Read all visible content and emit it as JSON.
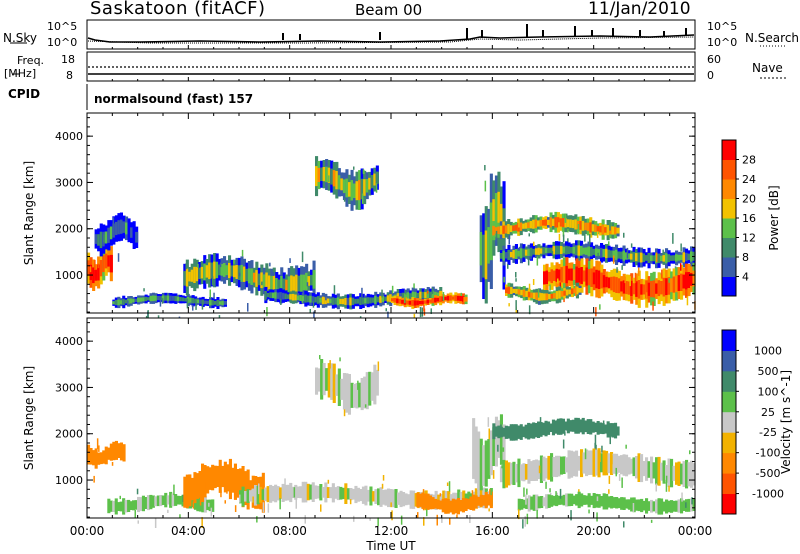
{
  "header": {
    "station": "Saskatoon (fitACF)",
    "beam": "Beam 00",
    "date": "11/Jan/2010"
  },
  "noise_panel": {
    "left_label": "N.Sky",
    "left_ticks": [
      "10^5",
      "10^0"
    ],
    "right_label": "N.Search",
    "right_ticks": [
      "10^5",
      "10^0"
    ]
  },
  "freq_panel": {
    "left_label_1": "Freq.",
    "left_label_2": "[MHz]",
    "left_ticks": [
      "18",
      "8"
    ],
    "right_label": "Nave",
    "right_ticks": [
      "60",
      "0"
    ]
  },
  "cpid_panel": {
    "label": "CPID",
    "text": "normalsound (fast) 157"
  },
  "colors": {
    "power_scale": [
      "#0000ff",
      "#3a5ea8",
      "#408a6a",
      "#5cc04a",
      "#f2c200",
      "#ff8800",
      "#ff5400",
      "#ff0000"
    ],
    "velocity_scale": [
      "#ff0000",
      "#ff5400",
      "#ff8800",
      "#f2b200",
      "#c8c8c8",
      "#5cc04a",
      "#408a6a",
      "#3a5ea8",
      "#0000ff"
    ]
  },
  "chart_data": [
    {
      "type": "heatmap",
      "title": "",
      "ylabel": "Slant Range [km]",
      "xlabel": "",
      "xlim": [
        "00:00",
        "24:00"
      ],
      "ylim": [
        180,
        4500
      ],
      "y_ticks": [
        "1000",
        "2000",
        "3000",
        "4000"
      ],
      "colorbar": {
        "label": "Power [dB]",
        "ticks": [
          "4",
          "8",
          "12",
          "16",
          "20",
          "24",
          "28"
        ],
        "range": [
          0,
          30
        ]
      },
      "regions": [
        {
          "t": [
            0.0,
            1.0
          ],
          "r": [
            700,
            1600
          ],
          "v": 26
        },
        {
          "t": [
            0.3,
            2.0
          ],
          "r": [
            1500,
            2300
          ],
          "v": 8
        },
        {
          "t": [
            1.0,
            5.5
          ],
          "r": [
            300,
            600
          ],
          "v": 10
        },
        {
          "t": [
            3.8,
            9.0
          ],
          "r": [
            500,
            1400
          ],
          "v": 14
        },
        {
          "t": [
            9.0,
            11.5
          ],
          "r": [
            2500,
            3500
          ],
          "v": 15
        },
        {
          "t": [
            7.0,
            14.0
          ],
          "r": [
            300,
            700
          ],
          "v": 12
        },
        {
          "t": [
            12.0,
            15.0
          ],
          "r": [
            300,
            600
          ],
          "v": 27
        },
        {
          "t": [
            15.5,
            16.5
          ],
          "r": [
            500,
            3300
          ],
          "v": 14
        },
        {
          "t": [
            16.0,
            21.0
          ],
          "r": [
            1800,
            2300
          ],
          "v": 20
        },
        {
          "t": [
            16.3,
            24.0
          ],
          "r": [
            1200,
            1700
          ],
          "v": 12
        },
        {
          "t": [
            18.0,
            24.0
          ],
          "r": [
            400,
            1300
          ],
          "v": 27
        },
        {
          "t": [
            16.5,
            19.5
          ],
          "r": [
            400,
            800
          ],
          "v": 20
        }
      ]
    },
    {
      "type": "heatmap",
      "title": "",
      "ylabel": "Slant Range [km]",
      "xlabel": "Time UT",
      "xlim": [
        "00:00",
        "24:00"
      ],
      "ylim": [
        180,
        4500
      ],
      "x_ticks": [
        "00:00",
        "04:00",
        "08:00",
        "12:00",
        "16:00",
        "20:00",
        "00:00"
      ],
      "y_ticks": [
        "1000",
        "2000",
        "3000",
        "4000"
      ],
      "colorbar": {
        "label": "Velocity [m s^-1]",
        "ticks": [
          "1000",
          "500",
          "100",
          "25",
          "-25",
          "-100",
          "-500",
          "-1000"
        ]
      },
      "regions": [
        {
          "t": [
            0.0,
            1.5
          ],
          "r": [
            1300,
            1800
          ],
          "v": -300
        },
        {
          "t": [
            0.8,
            5.0
          ],
          "r": [
            300,
            700
          ],
          "v": 50
        },
        {
          "t": [
            3.8,
            7.0
          ],
          "r": [
            400,
            1400
          ],
          "v": -300
        },
        {
          "t": [
            6.0,
            16.0
          ],
          "r": [
            400,
            900
          ],
          "v": 0
        },
        {
          "t": [
            9.0,
            11.5
          ],
          "r": [
            2500,
            3500
          ],
          "v": 0
        },
        {
          "t": [
            13.0,
            16.0
          ],
          "r": [
            300,
            700
          ],
          "v": -400
        },
        {
          "t": [
            15.2,
            16.5
          ],
          "r": [
            800,
            2400
          ],
          "v": 0
        },
        {
          "t": [
            16.0,
            21.0
          ],
          "r": [
            1900,
            2300
          ],
          "v": 300
        },
        {
          "t": [
            16.3,
            24.0
          ],
          "r": [
            900,
            1600
          ],
          "v": 0
        },
        {
          "t": [
            17.0,
            24.0
          ],
          "r": [
            300,
            700
          ],
          "v": 60
        }
      ]
    }
  ]
}
